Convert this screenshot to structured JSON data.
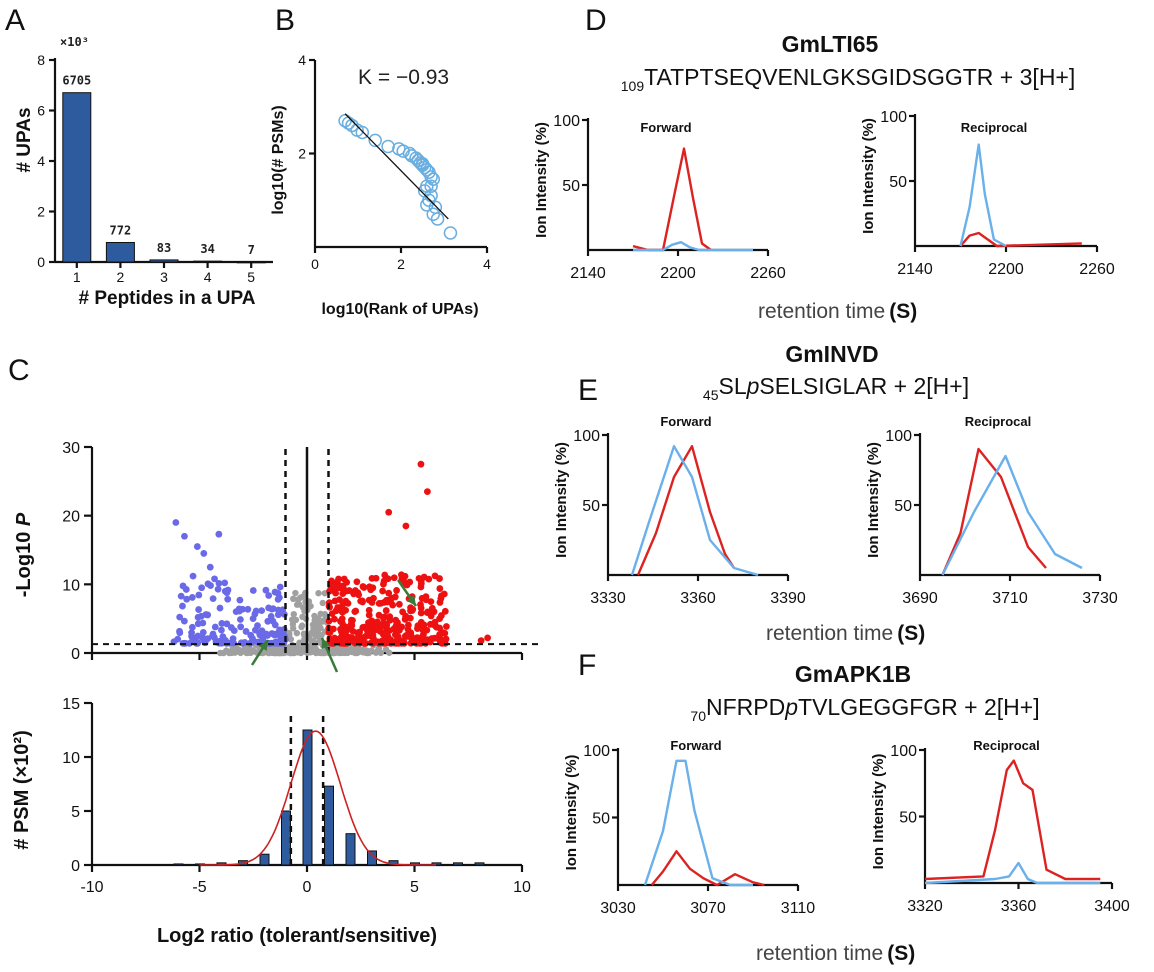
{
  "panel_letters": {
    "a": "A",
    "b": "B",
    "c": "C",
    "d": "D",
    "e": "E",
    "f": "F"
  },
  "colors": {
    "bar": "#2e5a9e",
    "up": "#ee1111",
    "down": "#6a6ae8",
    "ns": "#a0a0a0",
    "forward_trace": "#dd2222",
    "reciprocal_trace": "#6ab0ea",
    "fit": "#cc2222",
    "arrow": "#3a7a3a"
  },
  "chart_data": [
    {
      "id": "A",
      "type": "bar",
      "categories": [
        "1",
        "2",
        "3",
        "4",
        "5"
      ],
      "values": [
        6705,
        772,
        83,
        34,
        7
      ],
      "data_labels": [
        "6705",
        "772",
        "83",
        "34",
        "7"
      ],
      "ylim": [
        0,
        8000
      ],
      "yticks": [
        "0",
        "2",
        "4",
        "6",
        "8"
      ],
      "multiplier": "×10³",
      "xlabel": "# Peptides in a UPA",
      "ylabel": "# UPAs"
    },
    {
      "id": "B",
      "type": "scatter",
      "xlabel": "log10(Rank of UPAs)",
      "ylabel": "log10(# PSMs)",
      "xlim": [
        0,
        4
      ],
      "ylim": [
        0,
        4
      ],
      "xticks": [
        "0",
        "2",
        "4"
      ],
      "yticks": [
        "2",
        "4"
      ],
      "annotation": "K = −0.93",
      "x": [
        0.7,
        0.78,
        0.86,
        0.98,
        1.1,
        1.4,
        1.7,
        1.95,
        2.05,
        2.2,
        2.25,
        2.35,
        2.4,
        2.45,
        2.5,
        2.55,
        2.6,
        2.65,
        2.7,
        2.75,
        2.4,
        2.5,
        2.55,
        2.6,
        2.65,
        2.7,
        2.75,
        2.8,
        2.6,
        2.7,
        2.85,
        3.15
      ],
      "y": [
        2.7,
        2.65,
        2.6,
        2.5,
        2.45,
        2.28,
        2.15,
        2.1,
        2.05,
        2.0,
        1.95,
        1.9,
        1.85,
        1.8,
        1.75,
        1.7,
        1.65,
        1.6,
        1.5,
        1.45,
        1.85,
        1.78,
        1.2,
        1.3,
        1.0,
        1.1,
        0.7,
        0.85,
        0.9,
        1.3,
        0.6,
        0.3
      ],
      "fit_line": {
        "x": [
          0.7,
          3.1
        ],
        "y": [
          2.85,
          0.6
        ]
      }
    },
    {
      "id": "C-volcano",
      "type": "scatter",
      "xlim": [
        -10,
        10
      ],
      "ylim": [
        0,
        30
      ],
      "yticks": [
        "0",
        "10",
        "20",
        "30"
      ],
      "ylabel": "-Log10 ",
      "ylabel_italic": "P",
      "fc_cutoff": [
        -1,
        1
      ],
      "p_cutoff": 1.3,
      "up_labeled": [
        {
          "x": 5.3,
          "y": 27.5
        },
        {
          "x": 5.6,
          "y": 23.5
        },
        {
          "x": 3.8,
          "y": 20.5
        },
        {
          "x": 4.6,
          "y": 18.5
        },
        {
          "x": 8.4,
          "y": 2.2
        },
        {
          "x": 8.1,
          "y": 1.8
        }
      ],
      "down_labeled": [
        {
          "x": -6.1,
          "y": 19.0
        },
        {
          "x": -4.1,
          "y": 17.3
        },
        {
          "x": -5.7,
          "y": 17.0
        },
        {
          "x": -5.1,
          "y": 15.5
        },
        {
          "x": -4.8,
          "y": 14.5
        },
        {
          "x": -4.5,
          "y": 12.5
        },
        {
          "x": -5.3,
          "y": 11.2
        },
        {
          "x": -4.3,
          "y": 10.8
        },
        {
          "x": -4.9,
          "y": 9.5
        },
        {
          "x": -3.8,
          "y": 9.0
        }
      ]
    },
    {
      "id": "C-histogram",
      "type": "bar",
      "categories": [
        "-6",
        "-5",
        "-4",
        "-3",
        "-2",
        "-1",
        "0",
        "1",
        "2",
        "3",
        "4",
        "5",
        "6",
        "7",
        "8"
      ],
      "values": [
        0.1,
        0.1,
        0.2,
        0.4,
        1.0,
        5.0,
        12.5,
        7.3,
        2.9,
        1.3,
        0.4,
        0.2,
        0.2,
        0.2,
        0.2
      ],
      "fit": {
        "amplitude": 12.4,
        "mean": 0.4,
        "sd": 1.15
      },
      "xlim": [
        -10,
        10
      ],
      "ylim": [
        0,
        15
      ],
      "xticks": [
        "-10",
        "-5",
        "0",
        "5",
        "10"
      ],
      "yticks": [
        "0",
        "5",
        "10",
        "15"
      ],
      "ylabel": "# PSM (×10²)",
      "xlabel": "Log2 ratio (tolerant/sensitive)"
    },
    {
      "id": "D-forward",
      "type": "line",
      "label": "Forward",
      "xlim": [
        2140,
        2260
      ],
      "xticks": [
        "2140",
        "2200",
        "2260"
      ],
      "ylim": [
        0,
        100
      ],
      "yticks": [
        "50",
        "100"
      ],
      "series": [
        {
          "name": "red",
          "x": [
            2170,
            2180,
            2190,
            2198,
            2204,
            2210,
            2216,
            2222
          ],
          "y": [
            3,
            0,
            0,
            45,
            78,
            40,
            5,
            0
          ]
        },
        {
          "name": "blue",
          "x": [
            2170,
            2190,
            2196,
            2202,
            2208,
            2214,
            2250
          ],
          "y": [
            0,
            0,
            4,
            6,
            2,
            0,
            0
          ]
        }
      ]
    },
    {
      "id": "D-reciprocal",
      "type": "line",
      "label": "Reciprocal",
      "xlim": [
        2140,
        2260
      ],
      "xticks": [
        "2140",
        "2200",
        "2260"
      ],
      "ylim": [
        0,
        100
      ],
      "yticks": [
        "50",
        "100"
      ],
      "series": [
        {
          "name": "red",
          "x": [
            2170,
            2176,
            2182,
            2188,
            2194,
            2250
          ],
          "y": [
            0,
            8,
            10,
            5,
            0,
            2
          ]
        },
        {
          "name": "blue",
          "x": [
            2170,
            2176,
            2182,
            2186,
            2192,
            2200
          ],
          "y": [
            0,
            30,
            78,
            40,
            5,
            0
          ]
        }
      ]
    },
    {
      "id": "E-forward",
      "type": "line",
      "label": "Forward",
      "xlim": [
        3330,
        3390
      ],
      "xticks": [
        "3330",
        "3360",
        "3390"
      ],
      "ylim": [
        0,
        100
      ],
      "yticks": [
        "50",
        "100"
      ],
      "series": [
        {
          "name": "red",
          "x": [
            3340,
            3346,
            3352,
            3358,
            3364,
            3369,
            3372
          ],
          "y": [
            0,
            30,
            70,
            92,
            45,
            15,
            5
          ]
        },
        {
          "name": "blue",
          "x": [
            3338,
            3344,
            3352,
            3358,
            3364,
            3372,
            3380
          ],
          "y": [
            0,
            40,
            92,
            70,
            25,
            5,
            0
          ]
        }
      ]
    },
    {
      "id": "E-reciprocal",
      "type": "line",
      "label": "Reciprocal",
      "xlim": [
        3690,
        3730
      ],
      "xticks": [
        "3690",
        "3710",
        "3730"
      ],
      "ylim": [
        0,
        100
      ],
      "yticks": [
        "50",
        "100"
      ],
      "series": [
        {
          "name": "red",
          "x": [
            3695,
            3699,
            3703,
            3708,
            3714,
            3718
          ],
          "y": [
            0,
            30,
            90,
            70,
            20,
            5
          ]
        },
        {
          "name": "blue",
          "x": [
            3695,
            3702,
            3709,
            3714,
            3720,
            3726
          ],
          "y": [
            0,
            45,
            85,
            45,
            15,
            5
          ]
        }
      ]
    },
    {
      "id": "F-forward",
      "type": "line",
      "label": "Forward",
      "xlim": [
        3030,
        3110
      ],
      "xticks": [
        "3030",
        "3070",
        "3110"
      ],
      "ylim": [
        0,
        100
      ],
      "yticks": [
        "50",
        "100"
      ],
      "series": [
        {
          "name": "red",
          "x": [
            3045,
            3050,
            3056,
            3062,
            3068,
            3074,
            3082,
            3090,
            3095
          ],
          "y": [
            0,
            10,
            25,
            12,
            5,
            0,
            8,
            2,
            0
          ]
        },
        {
          "name": "blue",
          "x": [
            3042,
            3050,
            3056,
            3060,
            3064,
            3068,
            3072,
            3080,
            3090
          ],
          "y": [
            0,
            40,
            92,
            92,
            55,
            30,
            5,
            0,
            0
          ]
        }
      ]
    },
    {
      "id": "F-reciprocal",
      "type": "line",
      "label": "Reciprocal",
      "xlim": [
        3320,
        3400
      ],
      "xticks": [
        "3320",
        "3360",
        "3400"
      ],
      "ylim": [
        0,
        100
      ],
      "yticks": [
        "50",
        "100"
      ],
      "series": [
        {
          "name": "red",
          "x": [
            3320,
            3345,
            3350,
            3355,
            3358,
            3362,
            3366,
            3372,
            3380,
            3395
          ],
          "y": [
            3,
            5,
            40,
            85,
            92,
            75,
            70,
            10,
            3,
            3
          ]
        },
        {
          "name": "blue",
          "x": [
            3320,
            3350,
            3356,
            3360,
            3364,
            3368,
            3395
          ],
          "y": [
            0,
            3,
            5,
            15,
            3,
            0,
            0
          ]
        }
      ]
    }
  ],
  "panel_d": {
    "title": "GmLTI65",
    "seq_prefix": "109",
    "seq_main": "TATPTSEQVENLGKSGIDSGGTR",
    "charge": " + 3[H+]"
  },
  "panel_e": {
    "title": "GmINVD",
    "seq_prefix": "45",
    "seq_a": "SL",
    "seq_p": "p",
    "seq_b": "SELSIGLAR",
    "charge": " + 2[H+]"
  },
  "panel_f": {
    "title": "GmAPK1B",
    "seq_prefix": "70",
    "seq_a": "NFRPD",
    "seq_p": "p",
    "seq_b": "TVLGEGGFGR",
    "charge": " + 2[H+]"
  },
  "trace_ylabel": "Ion Intensity (%)",
  "rt_label": "retention time",
  "rt_unit": "(S)"
}
